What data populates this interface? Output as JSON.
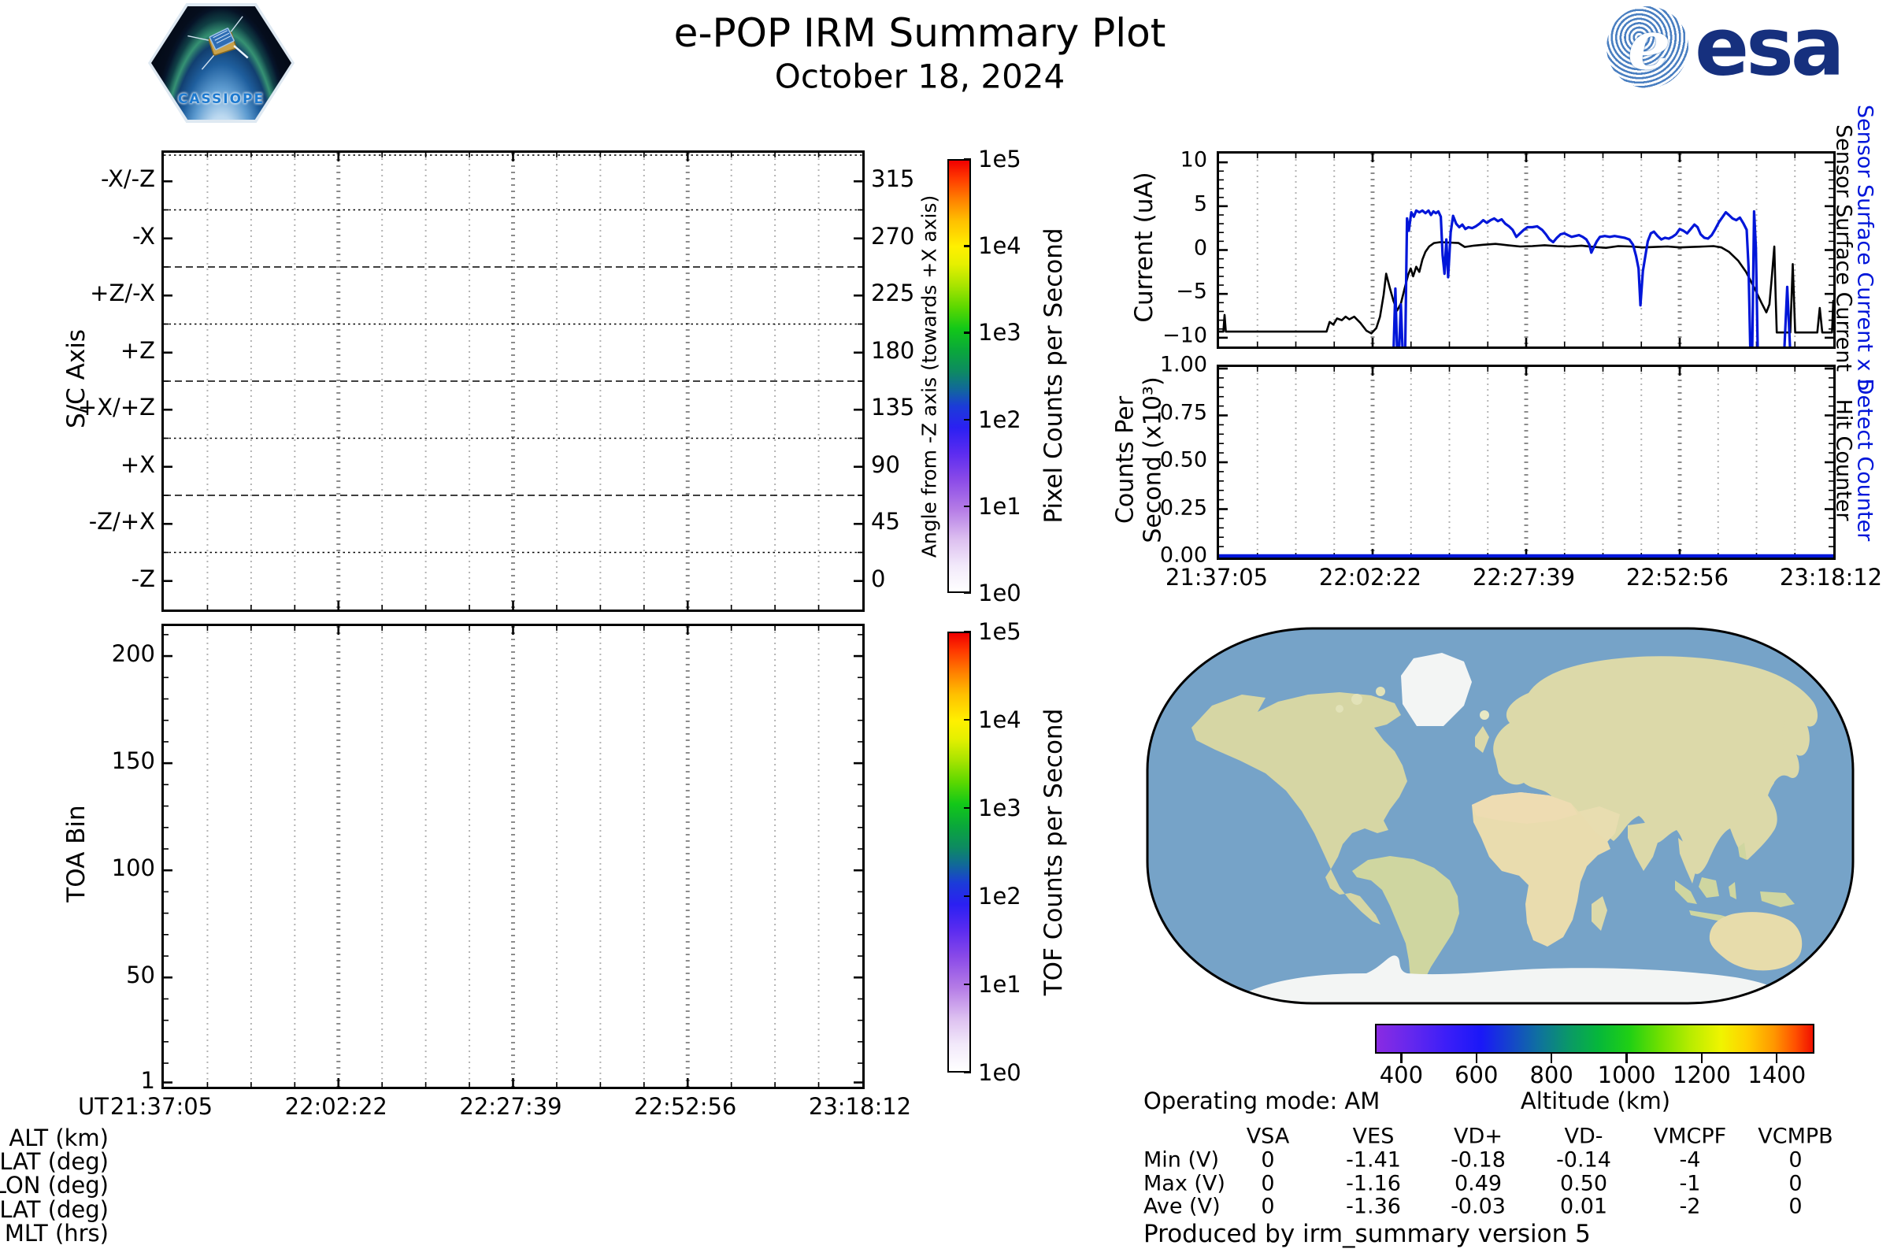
{
  "header": {
    "title": "e-POP IRM Summary Plot",
    "date": "October 18, 2024",
    "cassiope_badge": "CASSIOPE",
    "esa_logo_text": "esa"
  },
  "time_axis": {
    "prefix": "UT",
    "ticks": [
      "21:37:05",
      "22:02:22",
      "22:27:39",
      "22:52:56",
      "23:18:12"
    ]
  },
  "ephemeris_labels": [
    "ALT (km)",
    "LAT (deg)",
    "LON (deg)",
    "MLAT (deg)",
    "MLT (hrs)"
  ],
  "pixel_panel": {
    "ylabel": "S/C Axis",
    "categories": [
      "-X/-Z",
      "-X",
      "+Z/-X",
      "+Z",
      "+X/+Z",
      "+X",
      "-Z/+X",
      "-Z"
    ],
    "right_axis_label": "Angle from -Z axis (towards +X axis)",
    "right_ticks": [
      "315",
      "270",
      "225",
      "180",
      "135",
      "90",
      "45",
      "0"
    ],
    "colorbar_label": "Pixel Counts per Second",
    "colorbar_ticks": [
      "1e5",
      "1e4",
      "1e3",
      "1e2",
      "1e1",
      "1e0"
    ]
  },
  "toa_panel": {
    "ylabel": "TOA Bin",
    "yticks": [
      "200",
      "150",
      "100",
      "50",
      "1"
    ],
    "colorbar_label": "TOF Counts per Second",
    "colorbar_ticks": [
      "1e5",
      "1e4",
      "1e3",
      "1e2",
      "1e1",
      "1e0"
    ]
  },
  "current_panel": {
    "ylabel": "Current (uA)",
    "yticks": [
      "10",
      "5",
      "0",
      "−5",
      "−10"
    ],
    "right_label_blue": "Sensor Surface Current x 5",
    "right_label_black": "Sensor Surface Current"
  },
  "counts_panel": {
    "ylabel_line1": "Counts Per",
    "ylabel_line2": "Second (x10³)",
    "yticks": [
      "1.00",
      "0.75",
      "0.50",
      "0.25",
      "0.00"
    ],
    "right_label_blue": "Detect Counter",
    "right_label_black": "Hit Counter"
  },
  "altitude_bar": {
    "label": "Altitude (km)",
    "ticks": [
      "400",
      "600",
      "800",
      "1000",
      "1200",
      "1400"
    ]
  },
  "status": {
    "operating_mode": "Operating mode: AM"
  },
  "voltage_table": {
    "columns": [
      "VSA",
      "VES",
      "VD+",
      "VD-",
      "VMCPF",
      "VCMPB"
    ],
    "rows": [
      {
        "label": "Min (V)",
        "values": [
          "0",
          "-1.41",
          "-0.18",
          "-0.14",
          "-4",
          "0"
        ]
      },
      {
        "label": "Max (V)",
        "values": [
          "0",
          "-1.16",
          "0.49",
          "0.50",
          "-1",
          "0"
        ]
      },
      {
        "label": "Ave (V)",
        "values": [
          "0",
          "-1.36",
          "-0.03",
          "0.01",
          "-2",
          "0"
        ]
      }
    ]
  },
  "footer": {
    "credit": "Produced by irm_summary version 5"
  },
  "chart_data": [
    {
      "id": "pixel_angle_spectrogram",
      "type": "heatmap",
      "title": "",
      "x_ticks": [
        "21:37:05",
        "22:02:22",
        "22:27:39",
        "22:52:56",
        "23:18:12"
      ],
      "y_categories": [
        "-X/-Z",
        "-X",
        "+Z/-X",
        "+Z",
        "+X/+Z",
        "+X",
        "-Z/+X",
        "-Z"
      ],
      "right_axis": {
        "label": "Angle from -Z axis (towards +X axis)",
        "ticks": [
          315,
          270,
          225,
          180,
          135,
          90,
          45,
          0
        ]
      },
      "colorbar": {
        "label": "Pixel Counts per Second",
        "scale": "log",
        "ticks": [
          "1e5",
          "1e4",
          "1e3",
          "1e2",
          "1e1",
          "1e0"
        ]
      },
      "values": [],
      "note": "panel empty - no pixel count data plotted"
    },
    {
      "id": "toa_spectrogram",
      "type": "heatmap",
      "ylabel": "TOA Bin",
      "ylim": [
        1,
        214
      ],
      "yticks": [
        200,
        150,
        100,
        50,
        1
      ],
      "x_ticks": [
        "21:37:05",
        "22:02:22",
        "22:27:39",
        "22:52:56",
        "23:18:12"
      ],
      "colorbar": {
        "label": "TOF Counts per Second",
        "scale": "log",
        "ticks": [
          "1e5",
          "1e4",
          "1e3",
          "1e2",
          "1e1",
          "1e0"
        ]
      },
      "values": [],
      "note": "panel empty - no TOF count data plotted"
    },
    {
      "id": "sensor_current",
      "type": "line",
      "ylabel": "Current (uA)",
      "ylim": [
        -11,
        11
      ],
      "yticks": [
        10,
        5,
        0,
        -5,
        -10
      ],
      "x_ticks": [
        "21:37:05",
        "22:02:22",
        "22:27:39",
        "22:52:56",
        "23:18:12"
      ],
      "x_unit": "fraction of time window 21:37:05-23:18:12 UT",
      "series": [
        {
          "name": "Sensor Surface Current",
          "color": "#000000",
          "width": 2.6,
          "points": [
            [
              0,
              -9.3
            ],
            [
              0.007,
              -9.3
            ],
            [
              0.009,
              -7.4
            ],
            [
              0.011,
              -9.3
            ],
            [
              0.175,
              -9.3
            ],
            [
              0.18,
              -8.2
            ],
            [
              0.186,
              -8.5
            ],
            [
              0.192,
              -7.8
            ],
            [
              0.2,
              -8.0
            ],
            [
              0.206,
              -7.6
            ],
            [
              0.212,
              -7.9
            ],
            [
              0.22,
              -7.6
            ],
            [
              0.23,
              -8.3
            ],
            [
              0.24,
              -9.2
            ],
            [
              0.248,
              -9.5
            ],
            [
              0.256,
              -8.9
            ],
            [
              0.262,
              -7.6
            ],
            [
              0.268,
              -5.1
            ],
            [
              0.272,
              -2.7
            ],
            [
              0.278,
              -4.3
            ],
            [
              0.284,
              -5.8
            ],
            [
              0.29,
              -6.9
            ],
            [
              0.296,
              -6.1
            ],
            [
              0.302,
              -4.4
            ],
            [
              0.308,
              -2.8
            ],
            [
              0.312,
              -2.1
            ],
            [
              0.316,
              -3.0
            ],
            [
              0.321,
              -1.9
            ],
            [
              0.326,
              -2.5
            ],
            [
              0.331,
              -1.1
            ],
            [
              0.336,
              -0.2
            ],
            [
              0.342,
              0.4
            ],
            [
              0.35,
              0.8
            ],
            [
              0.36,
              0.9
            ],
            [
              0.375,
              0.85
            ],
            [
              0.39,
              0.8
            ],
            [
              0.4,
              0.35
            ],
            [
              0.415,
              0.5
            ],
            [
              0.43,
              0.6
            ],
            [
              0.45,
              0.7
            ],
            [
              0.47,
              0.55
            ],
            [
              0.49,
              0.4
            ],
            [
              0.51,
              0.45
            ],
            [
              0.53,
              0.55
            ],
            [
              0.55,
              0.45
            ],
            [
              0.57,
              0.4
            ],
            [
              0.59,
              0.5
            ],
            [
              0.61,
              0.35
            ],
            [
              0.63,
              0.25
            ],
            [
              0.65,
              0.45
            ],
            [
              0.67,
              0.4
            ],
            [
              0.69,
              0.3
            ],
            [
              0.71,
              0.35
            ],
            [
              0.73,
              0.4
            ],
            [
              0.75,
              0.3
            ],
            [
              0.77,
              0.35
            ],
            [
              0.79,
              0.4
            ],
            [
              0.805,
              0.45
            ],
            [
              0.818,
              0.3
            ],
            [
              0.83,
              -0.2
            ],
            [
              0.845,
              -1.2
            ],
            [
              0.858,
              -2.5
            ],
            [
              0.872,
              -4.4
            ],
            [
              0.883,
              -6.0
            ],
            [
              0.891,
              -7.1
            ],
            [
              0.896,
              -6.2
            ],
            [
              0.9,
              -3.0
            ],
            [
              0.904,
              0.4
            ],
            [
              0.906,
              -5.0
            ],
            [
              0.908,
              -9.4
            ],
            [
              0.93,
              -9.4
            ],
            [
              0.934,
              -1.6
            ],
            [
              0.938,
              -9.4
            ],
            [
              0.974,
              -9.4
            ],
            [
              0.978,
              -6.6
            ],
            [
              0.982,
              -9.4
            ],
            [
              0.998,
              -9.4
            ],
            [
              1.0,
              -5.8
            ]
          ]
        },
        {
          "name": "Sensor Surface Current x 5",
          "color": "#0016d9",
          "width": 3.2,
          "points": [
            [
              0.284,
              -11.8
            ],
            [
              0.287,
              -4.4
            ],
            [
              0.29,
              -11.8
            ],
            [
              0.293,
              -11.8
            ],
            [
              0.296,
              -6.2
            ],
            [
              0.299,
              -11.8
            ],
            [
              0.303,
              -11.8
            ],
            [
              0.306,
              3.6
            ],
            [
              0.309,
              2.2
            ],
            [
              0.313,
              4.3
            ],
            [
              0.317,
              3.8
            ],
            [
              0.321,
              4.5
            ],
            [
              0.326,
              4.3
            ],
            [
              0.331,
              4.5
            ],
            [
              0.336,
              4.2
            ],
            [
              0.341,
              4.5
            ],
            [
              0.345,
              4.0
            ],
            [
              0.349,
              4.4
            ],
            [
              0.353,
              4.2
            ],
            [
              0.357,
              4.4
            ],
            [
              0.361,
              3.8
            ],
            [
              0.364,
              -0.6
            ],
            [
              0.367,
              -2.7
            ],
            [
              0.37,
              1.2
            ],
            [
              0.373,
              -3.1
            ],
            [
              0.377,
              2.0
            ],
            [
              0.381,
              3.9
            ],
            [
              0.386,
              3.0
            ],
            [
              0.391,
              2.6
            ],
            [
              0.396,
              2.9
            ],
            [
              0.401,
              2.4
            ],
            [
              0.406,
              2.6
            ],
            [
              0.412,
              2.5
            ],
            [
              0.418,
              2.7
            ],
            [
              0.424,
              3.0
            ],
            [
              0.43,
              3.4
            ],
            [
              0.436,
              3.1
            ],
            [
              0.442,
              3.4
            ],
            [
              0.448,
              3.6
            ],
            [
              0.454,
              3.3
            ],
            [
              0.46,
              3.5
            ],
            [
              0.466,
              3.0
            ],
            [
              0.472,
              2.7
            ],
            [
              0.478,
              2.3
            ],
            [
              0.484,
              1.5
            ],
            [
              0.49,
              1.9
            ],
            [
              0.496,
              2.3
            ],
            [
              0.502,
              2.6
            ],
            [
              0.51,
              2.6
            ],
            [
              0.518,
              2.7
            ],
            [
              0.526,
              2.3
            ],
            [
              0.532,
              1.8
            ],
            [
              0.538,
              1.2
            ],
            [
              0.544,
              0.9
            ],
            [
              0.55,
              1.4
            ],
            [
              0.556,
              1.8
            ],
            [
              0.562,
              1.9
            ],
            [
              0.568,
              1.7
            ],
            [
              0.574,
              1.5
            ],
            [
              0.58,
              1.6
            ],
            [
              0.586,
              1.7
            ],
            [
              0.592,
              1.5
            ],
            [
              0.598,
              1.2
            ],
            [
              0.603,
              0.6
            ],
            [
              0.606,
              -0.3
            ],
            [
              0.61,
              0.3
            ],
            [
              0.615,
              1.0
            ],
            [
              0.62,
              1.5
            ],
            [
              0.628,
              1.6
            ],
            [
              0.636,
              1.5
            ],
            [
              0.644,
              1.6
            ],
            [
              0.652,
              1.5
            ],
            [
              0.66,
              1.4
            ],
            [
              0.668,
              1.2
            ],
            [
              0.674,
              0.6
            ],
            [
              0.679,
              -0.7
            ],
            [
              0.683,
              -2.1
            ],
            [
              0.686,
              -6.3
            ],
            [
              0.69,
              -2.4
            ],
            [
              0.694,
              -0.7
            ],
            [
              0.698,
              1.0
            ],
            [
              0.703,
              1.9
            ],
            [
              0.708,
              2.1
            ],
            [
              0.714,
              1.6
            ],
            [
              0.72,
              1.2
            ],
            [
              0.726,
              1.4
            ],
            [
              0.732,
              1.3
            ],
            [
              0.738,
              1.5
            ],
            [
              0.744,
              1.8
            ],
            [
              0.75,
              2.4
            ],
            [
              0.756,
              2.2
            ],
            [
              0.762,
              1.9
            ],
            [
              0.768,
              2.4
            ],
            [
              0.774,
              2.9
            ],
            [
              0.779,
              2.6
            ],
            [
              0.784,
              1.8
            ],
            [
              0.79,
              1.4
            ],
            [
              0.796,
              1.3
            ],
            [
              0.802,
              1.7
            ],
            [
              0.808,
              2.4
            ],
            [
              0.814,
              3.2
            ],
            [
              0.82,
              3.8
            ],
            [
              0.825,
              4.3
            ],
            [
              0.83,
              4.0
            ],
            [
              0.836,
              3.6
            ],
            [
              0.842,
              3.4
            ],
            [
              0.848,
              3.7
            ],
            [
              0.854,
              3.0
            ],
            [
              0.859,
              2.3
            ],
            [
              0.862,
              -2.0
            ],
            [
              0.865,
              -11.8
            ],
            [
              0.868,
              -11.8
            ],
            [
              0.871,
              4.4
            ],
            [
              0.874,
              0.3
            ],
            [
              0.877,
              -11.8
            ],
            [
              0.92,
              -11.8
            ],
            [
              0.925,
              -4.2
            ],
            [
              0.93,
              -11.8
            ]
          ]
        }
      ]
    },
    {
      "id": "counters",
      "type": "line",
      "ylabel": "Counts Per Second (x10³)",
      "ylim": [
        0,
        1
      ],
      "yticks": [
        1.0,
        0.75,
        0.5,
        0.25,
        0.0
      ],
      "x_ticks": [
        "21:37:05",
        "22:02:22",
        "22:27:39",
        "22:52:56",
        "23:18:12"
      ],
      "series": [
        {
          "name": "Hit Counter",
          "color": "#000000",
          "width": 3,
          "points": [
            [
              0,
              0
            ],
            [
              1,
              0
            ]
          ]
        },
        {
          "name": "Detect Counter",
          "color": "#0016d9",
          "width": 4.5,
          "points": [
            [
              0,
              0
            ],
            [
              1,
              0
            ]
          ]
        }
      ]
    },
    {
      "id": "altitude_colorbar",
      "type": "heatmap",
      "label": "Altitude (km)",
      "range": [
        330,
        1500
      ],
      "ticks": [
        400,
        600,
        800,
        1000,
        1200,
        1400
      ]
    }
  ]
}
